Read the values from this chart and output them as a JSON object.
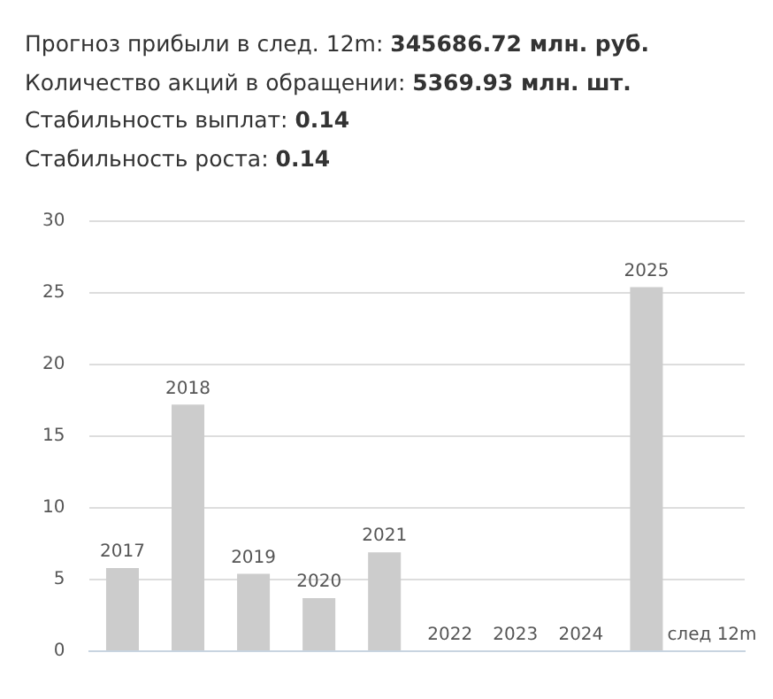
{
  "chart_data": {
    "type": "bar",
    "annotations": [
      "Прогноз прибыли в след. 12m: 345686.72 млн. руб.",
      "Количество акций в обращении: 5369.93 млн. шт.",
      "Стабильность выплат: 0.14",
      "Стабильность роста: 0.14"
    ],
    "categories": [
      "2017",
      "2018",
      "2019",
      "2020",
      "2021",
      "2022",
      "2023",
      "2024",
      "2025",
      "след 12m"
    ],
    "values": [
      5.8,
      17.2,
      5.4,
      3.7,
      6.9,
      0,
      0,
      0,
      25.4,
      0
    ],
    "color": "#cccccc",
    "ylim": [
      0,
      30
    ],
    "yticks": [
      0,
      5,
      10,
      15,
      20,
      25,
      30
    ],
    "grid": "y",
    "tick_labels": "y",
    "legend": false
  }
}
